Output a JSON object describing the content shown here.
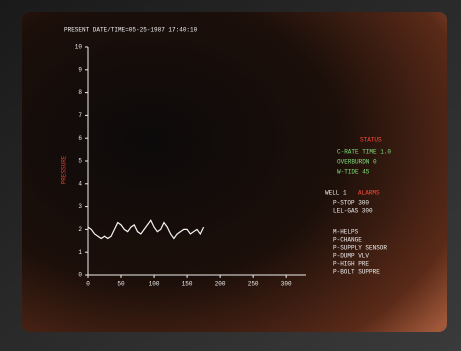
{
  "header": {
    "title": "PRESENT DATE/TIME=05-25-1987 17:40:10"
  },
  "chart_data": {
    "type": "line",
    "y_label": "PRESSURE",
    "x": [
      0,
      5,
      10,
      15,
      20,
      25,
      30,
      35,
      40,
      45,
      50,
      55,
      60,
      65,
      70,
      75,
      80,
      85,
      90,
      95,
      100,
      105,
      110,
      115,
      120,
      125,
      130,
      135,
      140,
      145,
      150,
      155,
      160,
      165,
      170,
      175
    ],
    "values": [
      2.1,
      2.0,
      1.8,
      1.7,
      1.6,
      1.7,
      1.6,
      1.7,
      2.0,
      2.3,
      2.2,
      2.0,
      1.9,
      2.1,
      2.2,
      1.9,
      1.8,
      2.0,
      2.2,
      2.4,
      2.1,
      1.9,
      2.0,
      2.3,
      2.1,
      1.8,
      1.6,
      1.8,
      1.9,
      2.0,
      2.0,
      1.8,
      1.9,
      2.0,
      1.8,
      2.1
    ],
    "color": "#f4f4f4",
    "xlim": [
      0,
      330
    ],
    "xticks": [
      0,
      50,
      100,
      150,
      200,
      250,
      300
    ],
    "ylim": [
      0,
      10
    ],
    "yticks": [
      0,
      1,
      2,
      3,
      4,
      5,
      6,
      7,
      8,
      9,
      10
    ]
  },
  "status_panel": {
    "title": "STATUS",
    "lines": [
      "C-RATE TIME 1.0",
      "OVERBURDN  0",
      "W-TIDE   45"
    ]
  },
  "alarm_panel": {
    "label": "WELL 1",
    "title": "ALARMS",
    "lines": [
      "P-STOP   300",
      "LEL-GAS  300"
    ]
  },
  "messages": [
    "M-HELPS",
    "P-CHANGE",
    "P-SUPPLY SENSOR",
    "P-DUMP VLV",
    "P-HIGH PRE",
    "P-BOLT SUPPRE"
  ]
}
